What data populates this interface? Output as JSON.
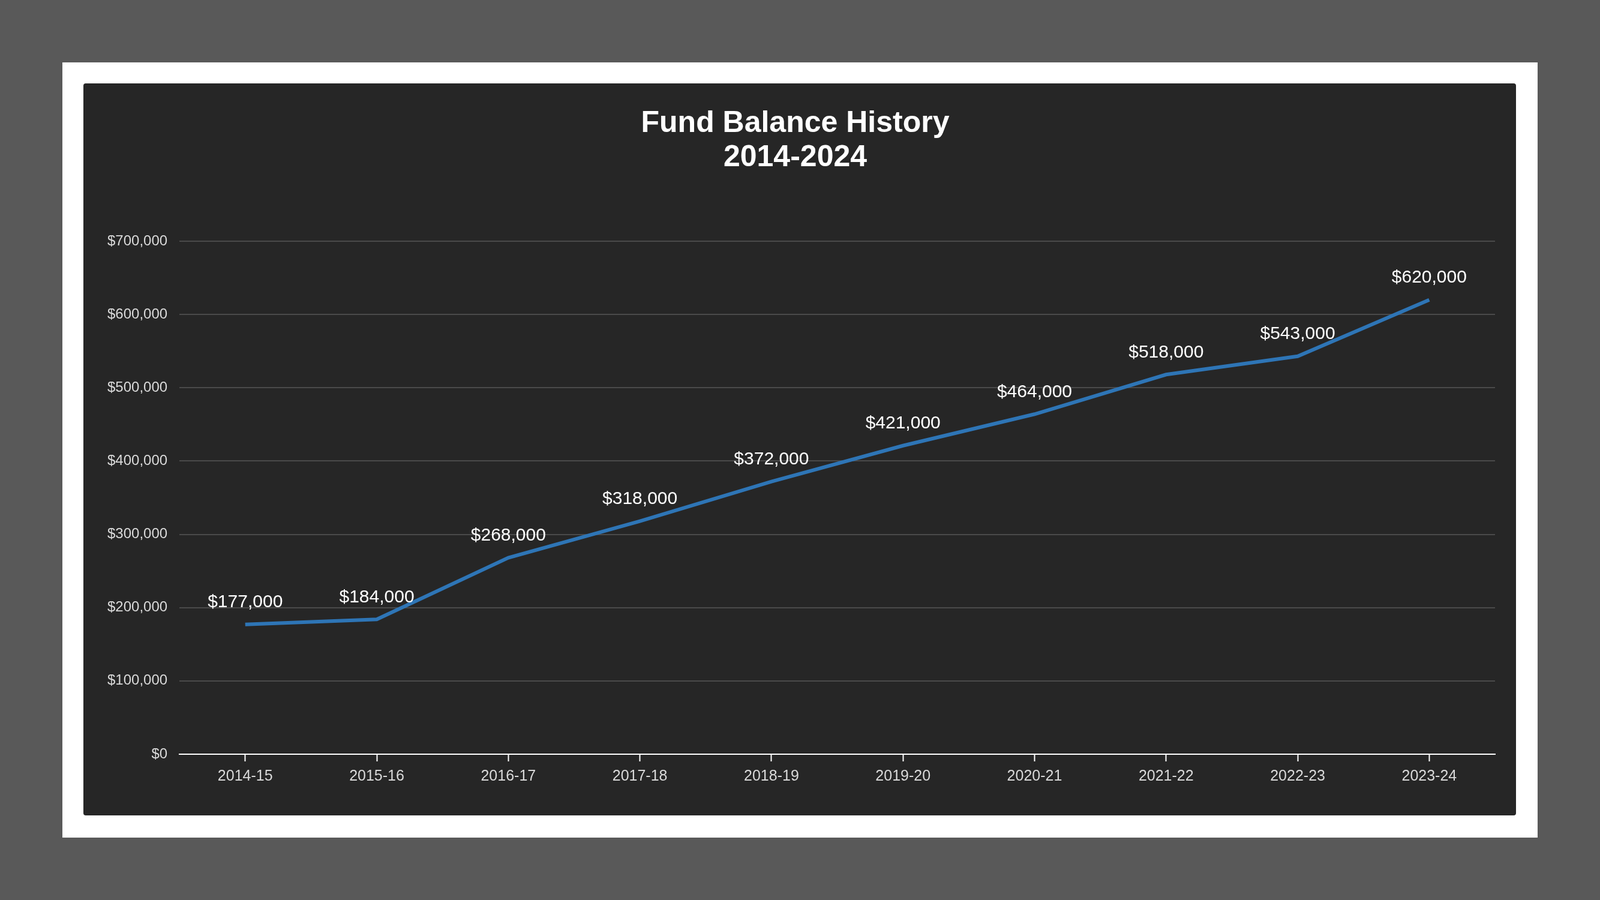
{
  "chart_data": {
    "type": "line",
    "title": [
      "Fund Balance History",
      "2014-2024"
    ],
    "categories": [
      "2014-15",
      "2015-16",
      "2016-17",
      "2017-18",
      "2018-19",
      "2019-20",
      "2020-21",
      "2021-22",
      "2022-23",
      "2023-24"
    ],
    "values": [
      177000,
      184000,
      268000,
      318000,
      372000,
      421000,
      464000,
      518000,
      543000,
      620000
    ],
    "value_labels": [
      "$177,000",
      "$184,000",
      "$268,000",
      "$318,000",
      "$372,000",
      "$421,000",
      "$464,000",
      "$518,000",
      "$543,000",
      "$620,000"
    ],
    "color": "#2e75b6",
    "ylim": [
      0,
      700000
    ],
    "yticks": [
      {
        "value": 0,
        "label": "$0"
      },
      {
        "value": 100000,
        "label": "$100,000"
      },
      {
        "value": 200000,
        "label": "$200,000"
      },
      {
        "value": 300000,
        "label": "$300,000"
      },
      {
        "value": 400000,
        "label": "$400,000"
      },
      {
        "value": 500000,
        "label": "$500,000"
      },
      {
        "value": 600000,
        "label": "$600,000"
      },
      {
        "value": 700000,
        "label": "$700,000"
      }
    ],
    "grid": true,
    "data_labels": true
  }
}
